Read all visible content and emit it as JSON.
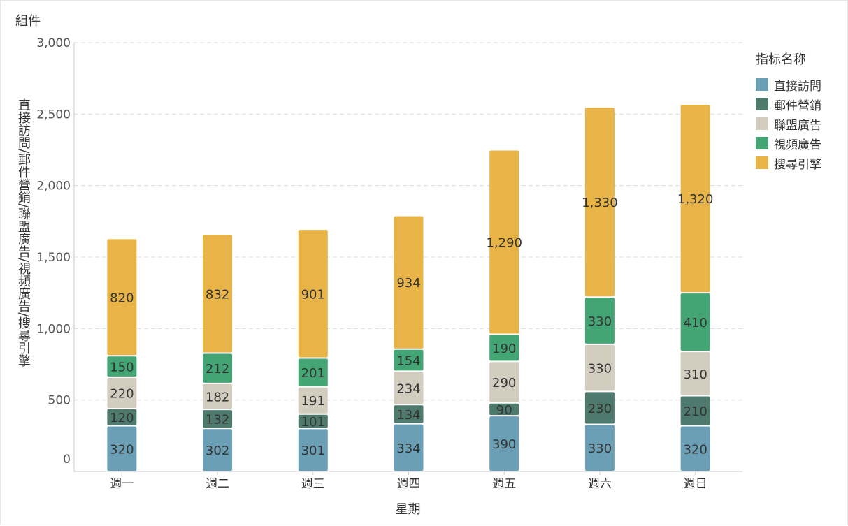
{
  "widget": {
    "title": "組件"
  },
  "legend": {
    "title": "指标名称"
  },
  "chart_data": {
    "type": "bar",
    "stacked": true,
    "categories": [
      "週一",
      "週二",
      "週三",
      "週四",
      "週五",
      "週六",
      "週日"
    ],
    "series": [
      {
        "name": "直接訪問",
        "color": "#6a9fb5",
        "values": [
          320,
          302,
          301,
          334,
          390,
          330,
          320
        ]
      },
      {
        "name": "郵件營銷",
        "color": "#4d7a6d",
        "values": [
          120,
          132,
          101,
          134,
          90,
          230,
          210
        ]
      },
      {
        "name": "聯盟廣告",
        "color": "#d3cdc0",
        "values": [
          220,
          182,
          191,
          234,
          290,
          330,
          310
        ]
      },
      {
        "name": "視頻廣告",
        "color": "#44a574",
        "values": [
          150,
          212,
          201,
          154,
          190,
          330,
          410
        ]
      },
      {
        "name": "搜尋引擎",
        "color": "#e9b447",
        "values": [
          820,
          832,
          901,
          934,
          1290,
          1330,
          1320
        ]
      }
    ],
    "data_labels": [
      [
        "320",
        "302",
        "301",
        "334",
        "390",
        "330",
        "320"
      ],
      [
        "120",
        "132",
        "101",
        "134",
        "90",
        "230",
        "210"
      ],
      [
        "220",
        "182",
        "191",
        "234",
        "290",
        "330",
        "310"
      ],
      [
        "150",
        "212",
        "201",
        "154",
        "190",
        "330",
        "410"
      ],
      [
        "820",
        "832",
        "901",
        "934",
        "1,290",
        "1,330",
        "1,320"
      ]
    ],
    "y_ticks": [
      0,
      500,
      1000,
      1500,
      2000,
      2500,
      3000
    ],
    "y_tick_labels": [
      "0",
      "500",
      "1,000",
      "1,500",
      "2,000",
      "2,500",
      "3,000"
    ],
    "ylim": [
      0,
      3000
    ],
    "xlabel": "星期",
    "ylabel": "直接訪問/郵件營銷/聯盟廣告/視頻廣告/搜尋引擎",
    "grid": true,
    "legend_position": "right"
  }
}
